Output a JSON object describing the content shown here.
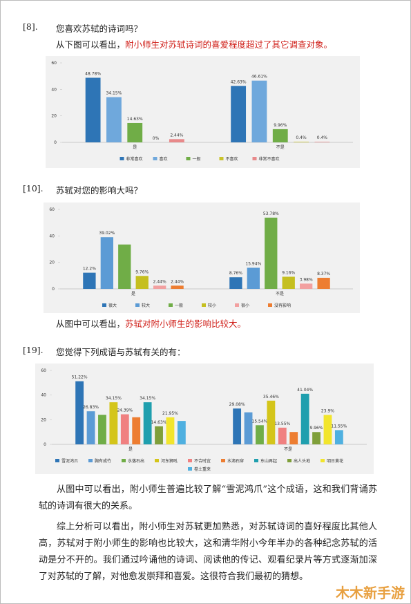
{
  "sections": {
    "q8": {
      "number": "[8].",
      "question": "您喜欢苏轼的诗词吗？",
      "finding_prefix": "从下图可以看出，",
      "finding_highlight": "附小师生对苏轼诗词的喜爱程度超过了其它调查对象。"
    },
    "q10": {
      "number": "[10].",
      "question": "苏轼对您的影响大吗？",
      "finding_prefix": "从图中可以看出，",
      "finding_highlight": "苏轼对附小师生的影响比较大。"
    },
    "q19": {
      "number": "[19].",
      "question": "您觉得下列成语与苏轼有关的有："
    },
    "paragraphs": [
      "从图中可以看出，附小师生普遍比较了解“雪泥鸿爪”这个成语，这和我们背诵苏轼的诗词有很大的关系。",
      "综上分析可以看出，附小师生对苏轼更加熟悉，对苏轼诗词的喜好程度比其他人高，苏轼对于附小师生的影响也比较大，这和清华附小今年半办的各种纪念苏轼的活动是分不开的。我们通过吟诵他的诗词、阅读他的传记、观看纪录片等方式逐渐加深了对苏轼的了解，对他愈发崇拜和喜爱。这很符合我们最初的猜想。"
    ],
    "watermark": "木木新手游"
  },
  "chart_data": [
    {
      "type": "bar",
      "categories": [
        "是",
        "不是"
      ],
      "ylim": [
        0,
        60
      ],
      "yticks": [
        0,
        20,
        40,
        60
      ],
      "grid": false,
      "series": [
        {
          "name": "非常喜欢",
          "color": "#2e75b6",
          "values": [
            48.78,
            42.63
          ],
          "value_labels": [
            "48.78%",
            "42.63%"
          ]
        },
        {
          "name": "喜欢",
          "color": "#6fa8dc",
          "values": [
            34.15,
            46.61
          ],
          "value_labels": [
            "34.15%",
            "46.61%"
          ]
        },
        {
          "name": "一般",
          "color": "#70ad47",
          "values": [
            14.63,
            9.96
          ],
          "value_labels": [
            "14.63%",
            "9.96%"
          ]
        },
        {
          "name": "不喜欢",
          "color": "#c9c32a",
          "values": [
            0,
            0.4
          ],
          "value_labels": [
            "0%",
            "0.4%"
          ]
        },
        {
          "name": "非常不喜欢",
          "color": "#e8898a",
          "values": [
            2.44,
            0.4
          ],
          "value_labels": [
            "2.44%",
            "0.4%"
          ]
        }
      ]
    },
    {
      "type": "bar",
      "categories": [
        "是",
        "不是"
      ],
      "ylim": [
        0,
        60
      ],
      "yticks": [
        0,
        20,
        40,
        60
      ],
      "grid": false,
      "series": [
        {
          "name": "很大",
          "color": "#2e75b6",
          "values": [
            12.2,
            8.76
          ],
          "value_labels": [
            "12.2%",
            "8.76%"
          ]
        },
        {
          "name": "较大",
          "color": "#5b9bd5",
          "values": [
            39.02,
            15.94
          ],
          "value_labels": [
            "39.02%",
            "15.94%"
          ]
        },
        {
          "name": "一般",
          "color": "#70ad47",
          "values": [
            33.5,
            53.78
          ],
          "value_labels": [
            null,
            "53.78%"
          ]
        },
        {
          "name": "较小",
          "color": "#c5bf1f",
          "values": [
            9.76,
            9.16
          ],
          "value_labels": [
            "9.76%",
            "9.16%"
          ]
        },
        {
          "name": "很小",
          "color": "#f2a0a0",
          "values": [
            2.44,
            3.98
          ],
          "value_labels": [
            "2.44%",
            "3.98%"
          ]
        },
        {
          "name": "没有影响",
          "color": "#ed7d31",
          "values": [
            2.44,
            8.37
          ],
          "value_labels": [
            "2.44%",
            "8.37%"
          ]
        }
      ]
    },
    {
      "type": "bar",
      "categories": [
        "是",
        "不是"
      ],
      "ylim": [
        0,
        60
      ],
      "yticks": [
        0,
        20,
        40,
        60
      ],
      "grid": false,
      "series": [
        {
          "name": "雪泥鸿爪",
          "color": "#2e75b6",
          "values": [
            51.22,
            29.08
          ],
          "value_labels": [
            "51.22%",
            "29.08%"
          ]
        },
        {
          "name": "胸有成竹",
          "color": "#5b9bd5",
          "values": [
            26.83,
            26
          ],
          "value_labels": [
            "26.83%",
            null
          ]
        },
        {
          "name": "水落石出",
          "color": "#70ad47",
          "values": [
            24,
            15.54
          ],
          "value_labels": [
            null,
            "15.54%"
          ]
        },
        {
          "name": "河东狮吼",
          "color": "#d4c51a",
          "values": [
            34.15,
            35.46
          ],
          "value_labels": [
            "34.15%",
            "35.46%"
          ]
        },
        {
          "name": "不合时宜",
          "color": "#f08080",
          "values": [
            24.39,
            13.55
          ],
          "value_labels": [
            "24.39%",
            "13.55%"
          ]
        },
        {
          "name": "水滴石穿",
          "color": "#ed7d31",
          "values": [
            22,
            10
          ],
          "value_labels": [
            null,
            null
          ]
        },
        {
          "name": "东山再起",
          "color": "#1f9fae",
          "values": [
            34.15,
            41.04
          ],
          "value_labels": [
            "34.15%",
            "41.04%"
          ]
        },
        {
          "name": "出人头地",
          "color": "#7f9f3a",
          "values": [
            14.63,
            9.96
          ],
          "value_labels": [
            "14.63%",
            "9.96%"
          ]
        },
        {
          "name": "明日黄花",
          "color": "#f2e52c",
          "values": [
            21.95,
            23.9
          ],
          "value_labels": [
            "21.95%",
            "23.9%"
          ]
        },
        {
          "name": "卷土重来",
          "color": "#4fb0e0",
          "values": [
            19,
            11.55
          ],
          "value_labels": [
            null,
            "11.55%"
          ]
        }
      ]
    }
  ]
}
